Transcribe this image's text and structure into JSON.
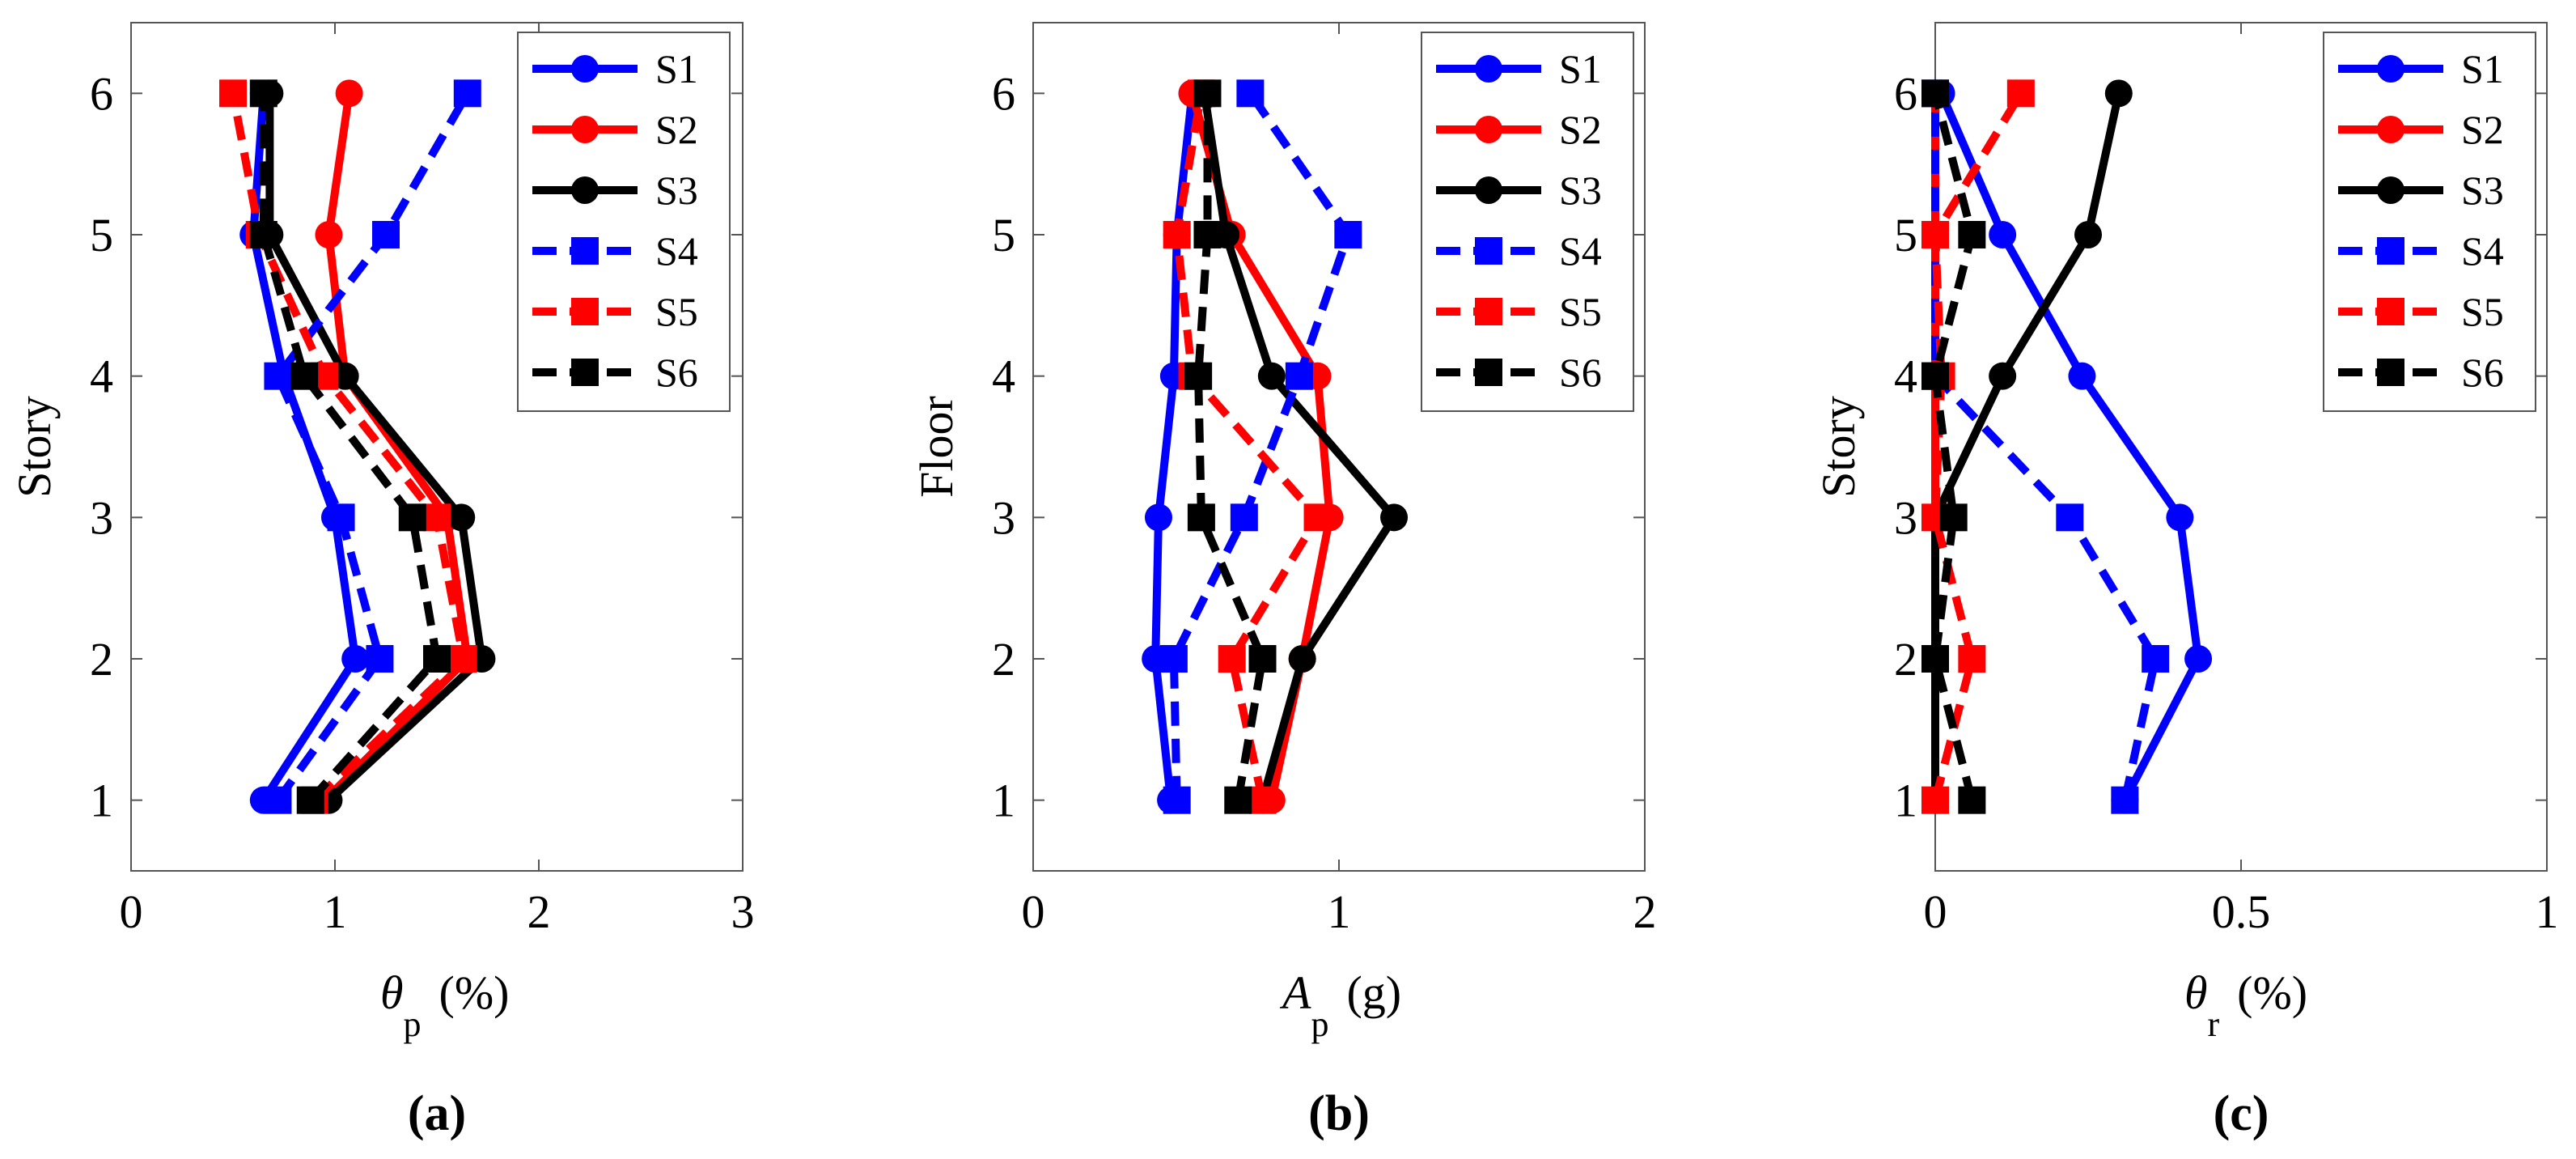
{
  "chart_data": [
    {
      "type": "line",
      "panel": "(a)",
      "xlabel_symbol": "θ",
      "xlabel_sub": "p",
      "xlabel_unit": "(%)",
      "ylabel": "Story",
      "xlim": [
        0,
        3
      ],
      "ylim": [
        0.5,
        6.5
      ],
      "xticks": [
        0,
        1,
        2,
        3
      ],
      "xtick_labels": [
        "0",
        "1",
        "2",
        "3"
      ],
      "yticks": [
        1,
        2,
        3,
        4,
        5,
        6
      ],
      "ytick_labels": [
        "1",
        "2",
        "3",
        "4",
        "5",
        "6"
      ],
      "legend_position": "top-right",
      "series": [
        {
          "name": "S1",
          "color": "#0000ff",
          "dash": "solid",
          "marker": "circle",
          "x": [
            0.65,
            1.1,
            1.0,
            0.75,
            0.6,
            0.65
          ],
          "y": [
            1,
            2,
            3,
            4,
            5,
            6
          ]
        },
        {
          "name": "S2",
          "color": "#ff0000",
          "dash": "solid",
          "marker": "circle",
          "x": [
            0.95,
            1.65,
            1.55,
            1.05,
            0.97,
            1.07
          ],
          "y": [
            1,
            2,
            3,
            4,
            5,
            6
          ]
        },
        {
          "name": "S3",
          "color": "#000000",
          "dash": "solid",
          "marker": "circle",
          "x": [
            0.97,
            1.72,
            1.62,
            1.05,
            0.68,
            0.68
          ],
          "y": [
            1,
            2,
            3,
            4,
            5,
            6
          ]
        },
        {
          "name": "S4",
          "color": "#0000ff",
          "dash": "dashed",
          "marker": "square",
          "x": [
            0.72,
            1.22,
            1.03,
            0.72,
            1.25,
            1.65
          ],
          "y": [
            1,
            2,
            3,
            4,
            5,
            6
          ]
        },
        {
          "name": "S5",
          "color": "#ff0000",
          "dash": "dashed",
          "marker": "square",
          "x": [
            0.9,
            1.63,
            1.5,
            0.95,
            0.63,
            0.5
          ],
          "y": [
            1,
            2,
            3,
            4,
            5,
            6
          ]
        },
        {
          "name": "S6",
          "color": "#000000",
          "dash": "dashed",
          "marker": "square",
          "x": [
            0.88,
            1.5,
            1.38,
            0.85,
            0.65,
            0.65
          ],
          "y": [
            1,
            2,
            3,
            4,
            5,
            6
          ]
        }
      ]
    },
    {
      "type": "line",
      "panel": "(b)",
      "xlabel_symbol": "A",
      "xlabel_sub": "p",
      "xlabel_unit": "(g)",
      "ylabel": "Floor",
      "xlim": [
        0,
        2
      ],
      "ylim": [
        0.5,
        6.5
      ],
      "xticks": [
        0,
        1,
        2
      ],
      "xtick_labels": [
        "0",
        "1",
        "2"
      ],
      "yticks": [
        1,
        2,
        3,
        4,
        5,
        6
      ],
      "ytick_labels": [
        "1",
        "2",
        "3",
        "4",
        "5",
        "6"
      ],
      "legend_position": "top-right",
      "series": [
        {
          "name": "S1",
          "color": "#0000ff",
          "dash": "solid",
          "marker": "circle",
          "x": [
            0.45,
            0.4,
            0.41,
            0.46,
            0.47,
            0.52
          ],
          "y": [
            1,
            2,
            3,
            4,
            5,
            6
          ]
        },
        {
          "name": "S2",
          "color": "#ff0000",
          "dash": "solid",
          "marker": "circle",
          "x": [
            0.78,
            0.88,
            0.97,
            0.93,
            0.65,
            0.52
          ],
          "y": [
            1,
            2,
            3,
            4,
            5,
            6
          ]
        },
        {
          "name": "S3",
          "color": "#000000",
          "dash": "solid",
          "marker": "circle",
          "x": [
            0.75,
            0.88,
            1.18,
            0.78,
            0.63,
            0.56
          ],
          "y": [
            1,
            2,
            3,
            4,
            5,
            6
          ]
        },
        {
          "name": "S4",
          "color": "#0000ff",
          "dash": "dashed",
          "marker": "square",
          "x": [
            0.47,
            0.46,
            0.69,
            0.87,
            1.03,
            0.71
          ],
          "y": [
            1,
            2,
            3,
            4,
            5,
            6
          ]
        },
        {
          "name": "S5",
          "color": "#ff0000",
          "dash": "dashed",
          "marker": "square",
          "x": [
            0.75,
            0.65,
            0.93,
            0.52,
            0.47,
            0.55
          ],
          "y": [
            1,
            2,
            3,
            4,
            5,
            6
          ]
        },
        {
          "name": "S6",
          "color": "#000000",
          "dash": "dashed",
          "marker": "square",
          "x": [
            0.67,
            0.75,
            0.55,
            0.54,
            0.57,
            0.57
          ],
          "y": [
            1,
            2,
            3,
            4,
            5,
            6
          ]
        }
      ]
    },
    {
      "type": "line",
      "panel": "(c)",
      "xlabel_symbol": "θ",
      "xlabel_sub": "r",
      "xlabel_unit": "(%)",
      "ylabel": "Story",
      "xlim": [
        0,
        1
      ],
      "ylim": [
        0.5,
        6.5
      ],
      "xticks": [
        0,
        0.5,
        1
      ],
      "xtick_labels": [
        "0",
        "0.5",
        "1"
      ],
      "yticks": [
        1,
        2,
        3,
        4,
        5,
        6
      ],
      "ytick_labels": [
        "1",
        "2",
        "3",
        "4",
        "5",
        "6"
      ],
      "legend_position": "top-right",
      "series": [
        {
          "name": "S1",
          "color": "#0000ff",
          "dash": "solid",
          "marker": "circle",
          "x": [
            0.31,
            0.43,
            0.4,
            0.24,
            0.11,
            0.01
          ],
          "y": [
            1,
            2,
            3,
            4,
            5,
            6
          ]
        },
        {
          "name": "S2",
          "color": "#ff0000",
          "dash": "solid",
          "marker": "circle",
          "x": [
            0.0,
            0.0,
            0.0,
            0.0,
            0.0,
            0.0
          ],
          "y": [
            1,
            2,
            3,
            4,
            5,
            6
          ]
        },
        {
          "name": "S3",
          "color": "#000000",
          "dash": "solid",
          "marker": "circle",
          "x": [
            0.0,
            0.0,
            0.0,
            0.11,
            0.25,
            0.3
          ],
          "y": [
            1,
            2,
            3,
            4,
            5,
            6
          ]
        },
        {
          "name": "S4",
          "color": "#0000ff",
          "dash": "dashed",
          "marker": "square",
          "x": [
            0.31,
            0.36,
            0.22,
            0.0,
            0.0,
            0.0
          ],
          "y": [
            1,
            2,
            3,
            4,
            5,
            6
          ]
        },
        {
          "name": "S5",
          "color": "#ff0000",
          "dash": "dashed",
          "marker": "square",
          "x": [
            0.0,
            0.06,
            0.0,
            0.01,
            0.0,
            0.14
          ],
          "y": [
            1,
            2,
            3,
            4,
            5,
            6
          ]
        },
        {
          "name": "S6",
          "color": "#000000",
          "dash": "dashed",
          "marker": "square",
          "x": [
            0.06,
            0.0,
            0.03,
            0.0,
            0.06,
            0.0
          ],
          "y": [
            1,
            2,
            3,
            4,
            5,
            6
          ]
        }
      ]
    }
  ]
}
